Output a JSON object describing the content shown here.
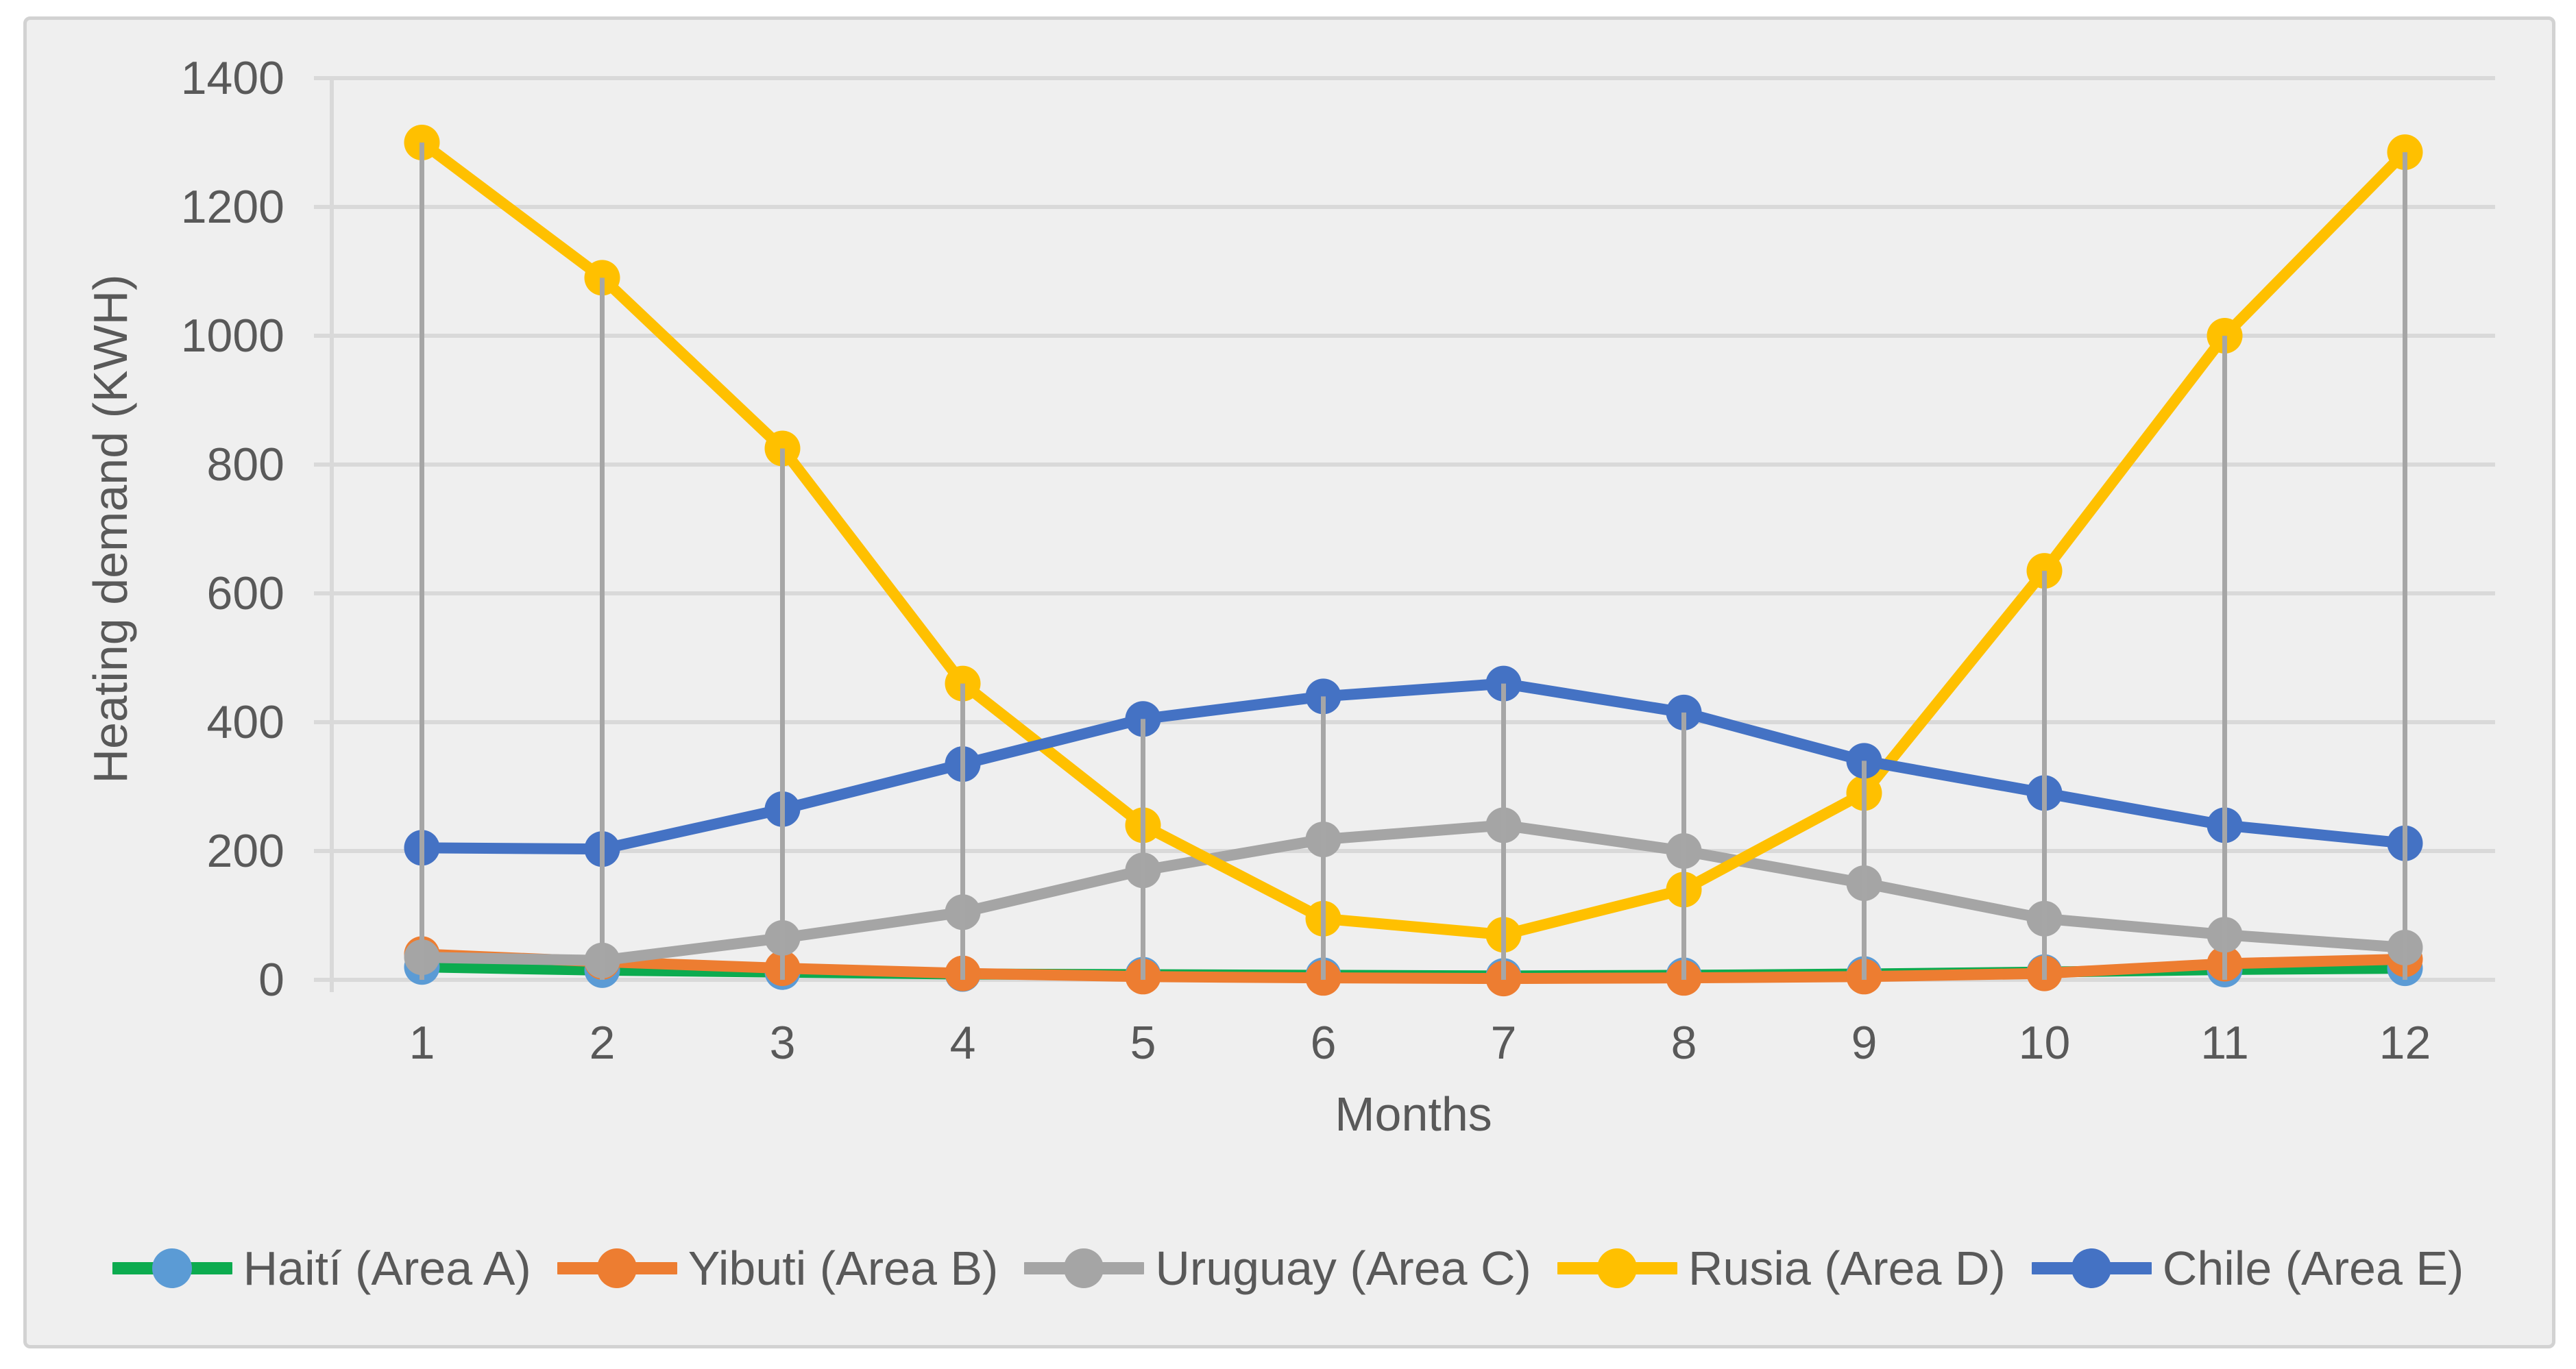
{
  "figure": {
    "background": "#FFFFFF",
    "panel_fill": "#EFEFEF",
    "panel_border": "#D2D2D2",
    "gridline_color": "#D9D9D9",
    "axis_line_color": "#D9D9D9",
    "dropline_color": "#A6A6A6",
    "text_color": "#595959"
  },
  "chart_data": {
    "type": "line",
    "title": "",
    "xlabel": "Months",
    "ylabel": "Heating demand (KWH)",
    "x": [
      1,
      2,
      3,
      4,
      5,
      6,
      7,
      8,
      9,
      10,
      11,
      12
    ],
    "y_ticks": [
      0,
      200,
      400,
      600,
      800,
      1000,
      1200,
      1400
    ],
    "ylim": [
      0,
      1400
    ],
    "grid": "horizontal",
    "legend_position": "bottom",
    "drop_lines": true,
    "marker": "circle",
    "series": [
      {
        "name": "Haití (Area A)",
        "line_color": "#0CAB4F",
        "marker_color": "#5B9BD5",
        "values": [
          20,
          15,
          12,
          9,
          8,
          7,
          6,
          7,
          9,
          12,
          16,
          18
        ]
      },
      {
        "name": "Yibuti (Area B)",
        "line_color": "#ED7D31",
        "marker_color": "#ED7D31",
        "values": [
          40,
          28,
          18,
          10,
          5,
          3,
          2,
          3,
          5,
          10,
          25,
          32
        ]
      },
      {
        "name": "Uruguay (Area C)",
        "line_color": "#A5A5A5",
        "marker_color": "#A5A5A5",
        "values": [
          35,
          30,
          65,
          105,
          170,
          218,
          240,
          200,
          150,
          95,
          70,
          50
        ]
      },
      {
        "name": "Rusia (Area D)",
        "line_color": "#FFC000",
        "marker_color": "#FFC000",
        "values": [
          1300,
          1090,
          825,
          460,
          240,
          95,
          70,
          140,
          290,
          635,
          1000,
          1285
        ]
      },
      {
        "name": "Chile (Area E)",
        "line_color": "#4472C4",
        "marker_color": "#4472C4",
        "values": [
          205,
          203,
          265,
          335,
          405,
          440,
          460,
          415,
          340,
          290,
          240,
          212
        ]
      }
    ]
  }
}
